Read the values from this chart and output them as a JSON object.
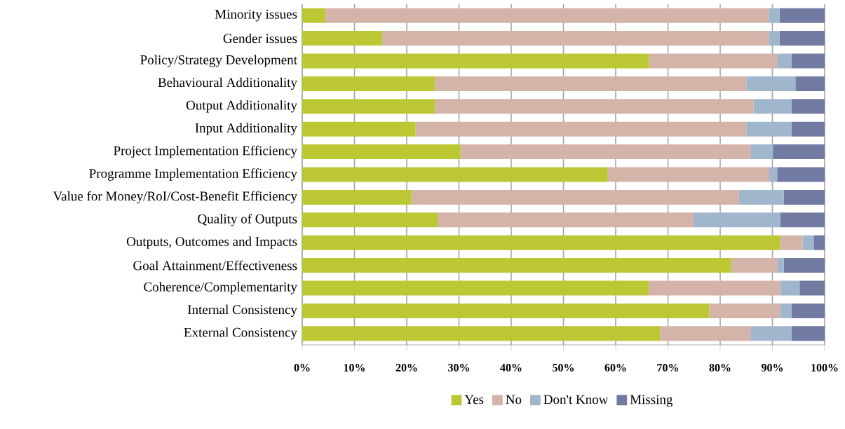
{
  "chart_data": {
    "type": "bar",
    "orientation": "horizontal",
    "stacked": true,
    "categories": [
      "Minority issues",
      "Gender issues",
      "Policy/Strategy Development",
      "Behavioural Additionality",
      "Output Additionality",
      "Input Additionality",
      "Project Implementation Efficiency",
      "Programme Implementation Efficiency",
      "Value for Money/RoI/Cost-Benefit Efficiency",
      "Quality of Outputs",
      "Outputs, Outcomes and Impacts",
      "Goal Attainment/Effectiveness",
      "Coherence/Complementarity",
      "Internal Consistency",
      "External Consistency"
    ],
    "series": [
      {
        "name": "Yes",
        "color": "#bcc734",
        "values": [
          4.4,
          15.3,
          66.4,
          25.4,
          25.4,
          21.7,
          30.3,
          58.5,
          20.9,
          25.9,
          91.5,
          82.1,
          66.3,
          77.9,
          68.5
        ]
      },
      {
        "name": "No",
        "color": "#d4b3a9",
        "values": [
          84.9,
          74.0,
          24.5,
          59.6,
          61.0,
          63.3,
          55.5,
          30.9,
          62.7,
          49.0,
          4.3,
          8.8,
          25.2,
          13.6,
          17.3
        ]
      },
      {
        "name": "Don't Know",
        "color": "#a0b6cc",
        "values": [
          2.1,
          2.1,
          2.8,
          9.4,
          7.3,
          8.7,
          4.3,
          1.5,
          8.6,
          16.6,
          2.1,
          1.3,
          3.7,
          2.2,
          7.9
        ]
      },
      {
        "name": "Missing",
        "color": "#717aa1",
        "values": [
          8.6,
          8.6,
          6.3,
          5.6,
          6.3,
          6.3,
          9.9,
          9.1,
          7.8,
          8.5,
          2.1,
          7.8,
          4.8,
          6.3,
          6.3
        ]
      }
    ],
    "xlim": [
      0,
      100
    ],
    "xticks": [
      {
        "value": 0,
        "label": "0%"
      },
      {
        "value": 10,
        "label": "10%"
      },
      {
        "value": 20,
        "label": "20%"
      },
      {
        "value": 30,
        "label": "30%"
      },
      {
        "value": 40,
        "label": "40%"
      },
      {
        "value": 50,
        "label": "50%"
      },
      {
        "value": 60,
        "label": "60%"
      },
      {
        "value": 70,
        "label": "70%"
      },
      {
        "value": 80,
        "label": "80%"
      },
      {
        "value": 90,
        "label": "90%"
      },
      {
        "value": 100,
        "label": "100%"
      }
    ],
    "grid": "x",
    "legend": "bottom"
  }
}
